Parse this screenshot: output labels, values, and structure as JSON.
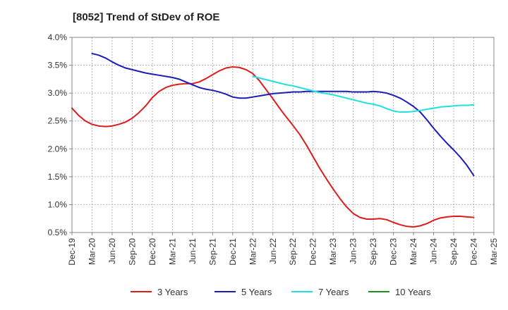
{
  "chart_data": {
    "type": "line",
    "title": "[8052]  Trend of StDev of ROE",
    "x_ticks": [
      "Dec-19",
      "Mar-20",
      "Jun-20",
      "Sep-20",
      "Dec-20",
      "Mar-21",
      "Jun-21",
      "Sep-21",
      "Dec-21",
      "Mar-22",
      "Jun-22",
      "Sep-22",
      "Dec-22",
      "Mar-23",
      "Jun-23",
      "Sep-23",
      "Dec-23",
      "Mar-24",
      "Jun-24",
      "Sep-24",
      "Dec-24",
      "Mar-25"
    ],
    "y_ticks": [
      "0.5%",
      "1.0%",
      "1.5%",
      "2.0%",
      "2.5%",
      "3.0%",
      "3.5%",
      "4.0%"
    ],
    "ylim": [
      0.5,
      4.0
    ],
    "y_unit": "%",
    "grid": true,
    "legend_position": "bottom",
    "series": [
      {
        "name": "3 Years",
        "color": "#dd1c1c",
        "points": [
          [
            "Dec-19",
            2.73
          ],
          [
            "Jan-20",
            2.6
          ],
          [
            "Feb-20",
            2.5
          ],
          [
            "Mar-20",
            2.44
          ],
          [
            "Apr-20",
            2.41
          ],
          [
            "May-20",
            2.4
          ],
          [
            "Jun-20",
            2.41
          ],
          [
            "Jul-20",
            2.44
          ],
          [
            "Aug-20",
            2.48
          ],
          [
            "Sep-20",
            2.55
          ],
          [
            "Oct-20",
            2.65
          ],
          [
            "Nov-20",
            2.77
          ],
          [
            "Dec-20",
            2.92
          ],
          [
            "Jan-21",
            3.03
          ],
          [
            "Feb-21",
            3.1
          ],
          [
            "Mar-21",
            3.14
          ],
          [
            "Apr-21",
            3.16
          ],
          [
            "May-21",
            3.17
          ],
          [
            "Jun-21",
            3.17
          ],
          [
            "Jul-21",
            3.2
          ],
          [
            "Aug-21",
            3.26
          ],
          [
            "Sep-21",
            3.33
          ],
          [
            "Oct-21",
            3.4
          ],
          [
            "Nov-21",
            3.45
          ],
          [
            "Dec-21",
            3.47
          ],
          [
            "Jan-22",
            3.46
          ],
          [
            "Feb-22",
            3.42
          ],
          [
            "Mar-22",
            3.35
          ],
          [
            "Apr-22",
            3.22
          ],
          [
            "May-22",
            3.06
          ],
          [
            "Jun-22",
            2.9
          ],
          [
            "Jul-22",
            2.73
          ],
          [
            "Aug-22",
            2.57
          ],
          [
            "Sep-22",
            2.42
          ],
          [
            "Oct-22",
            2.26
          ],
          [
            "Nov-22",
            2.07
          ],
          [
            "Dec-22",
            1.86
          ],
          [
            "Jan-23",
            1.65
          ],
          [
            "Feb-23",
            1.46
          ],
          [
            "Mar-23",
            1.28
          ],
          [
            "Apr-23",
            1.11
          ],
          [
            "May-23",
            0.96
          ],
          [
            "Jun-23",
            0.84
          ],
          [
            "Jul-23",
            0.77
          ],
          [
            "Aug-23",
            0.74
          ],
          [
            "Sep-23",
            0.74
          ],
          [
            "Oct-23",
            0.75
          ],
          [
            "Nov-23",
            0.73
          ],
          [
            "Dec-23",
            0.68
          ],
          [
            "Jan-24",
            0.64
          ],
          [
            "Feb-24",
            0.61
          ],
          [
            "Mar-24",
            0.6
          ],
          [
            "Apr-24",
            0.62
          ],
          [
            "May-24",
            0.66
          ],
          [
            "Jun-24",
            0.72
          ],
          [
            "Jul-24",
            0.76
          ],
          [
            "Aug-24",
            0.78
          ],
          [
            "Sep-24",
            0.79
          ],
          [
            "Oct-24",
            0.79
          ],
          [
            "Nov-24",
            0.78
          ],
          [
            "Dec-24",
            0.77
          ]
        ]
      },
      {
        "name": "5 Years",
        "color": "#1c1cb8",
        "points": [
          [
            "Mar-20",
            3.71
          ],
          [
            "Apr-20",
            3.68
          ],
          [
            "May-20",
            3.63
          ],
          [
            "Jun-20",
            3.56
          ],
          [
            "Jul-20",
            3.5
          ],
          [
            "Aug-20",
            3.45
          ],
          [
            "Sep-20",
            3.42
          ],
          [
            "Oct-20",
            3.39
          ],
          [
            "Nov-20",
            3.36
          ],
          [
            "Dec-20",
            3.34
          ],
          [
            "Jan-21",
            3.32
          ],
          [
            "Feb-21",
            3.3
          ],
          [
            "Mar-21",
            3.28
          ],
          [
            "Apr-21",
            3.25
          ],
          [
            "May-21",
            3.2
          ],
          [
            "Jun-21",
            3.15
          ],
          [
            "Jul-21",
            3.1
          ],
          [
            "Aug-21",
            3.07
          ],
          [
            "Sep-21",
            3.05
          ],
          [
            "Oct-21",
            3.02
          ],
          [
            "Nov-21",
            2.98
          ],
          [
            "Dec-21",
            2.93
          ],
          [
            "Jan-22",
            2.91
          ],
          [
            "Feb-22",
            2.91
          ],
          [
            "Mar-22",
            2.93
          ],
          [
            "Apr-22",
            2.95
          ],
          [
            "May-22",
            2.97
          ],
          [
            "Jun-22",
            2.99
          ],
          [
            "Jul-22",
            3.0
          ],
          [
            "Aug-22",
            3.01
          ],
          [
            "Sep-22",
            3.02
          ],
          [
            "Oct-22",
            3.02
          ],
          [
            "Nov-22",
            3.03
          ],
          [
            "Dec-22",
            3.03
          ],
          [
            "Jan-23",
            3.03
          ],
          [
            "Feb-23",
            3.03
          ],
          [
            "Mar-23",
            3.03
          ],
          [
            "Apr-23",
            3.03
          ],
          [
            "May-23",
            3.03
          ],
          [
            "Jun-23",
            3.02
          ],
          [
            "Jul-23",
            3.02
          ],
          [
            "Aug-23",
            3.02
          ],
          [
            "Sep-23",
            3.03
          ],
          [
            "Oct-23",
            3.02
          ],
          [
            "Nov-23",
            3.0
          ],
          [
            "Dec-23",
            2.96
          ],
          [
            "Jan-24",
            2.91
          ],
          [
            "Feb-24",
            2.84
          ],
          [
            "Mar-24",
            2.76
          ],
          [
            "Apr-24",
            2.66
          ],
          [
            "May-24",
            2.52
          ],
          [
            "Jun-24",
            2.37
          ],
          [
            "Jul-24",
            2.23
          ],
          [
            "Aug-24",
            2.1
          ],
          [
            "Sep-24",
            1.98
          ],
          [
            "Oct-24",
            1.85
          ],
          [
            "Nov-24",
            1.7
          ],
          [
            "Dec-24",
            1.52
          ]
        ]
      },
      {
        "name": "7 Years",
        "color": "#22e0e0",
        "points": [
          [
            "Mar-22",
            3.3
          ],
          [
            "Apr-22",
            3.27
          ],
          [
            "May-22",
            3.24
          ],
          [
            "Jun-22",
            3.21
          ],
          [
            "Jul-22",
            3.18
          ],
          [
            "Aug-22",
            3.15
          ],
          [
            "Sep-22",
            3.13
          ],
          [
            "Oct-22",
            3.1
          ],
          [
            "Nov-22",
            3.07
          ],
          [
            "Dec-22",
            3.04
          ],
          [
            "Jan-23",
            3.01
          ],
          [
            "Feb-23",
            2.99
          ],
          [
            "Mar-23",
            2.97
          ],
          [
            "Apr-23",
            2.94
          ],
          [
            "May-23",
            2.91
          ],
          [
            "Jun-23",
            2.88
          ],
          [
            "Jul-23",
            2.85
          ],
          [
            "Aug-23",
            2.82
          ],
          [
            "Sep-23",
            2.8
          ],
          [
            "Oct-23",
            2.77
          ],
          [
            "Nov-23",
            2.72
          ],
          [
            "Dec-23",
            2.68
          ],
          [
            "Jan-24",
            2.66
          ],
          [
            "Feb-24",
            2.66
          ],
          [
            "Mar-24",
            2.67
          ],
          [
            "Apr-24",
            2.69
          ],
          [
            "May-24",
            2.71
          ],
          [
            "Jun-24",
            2.73
          ],
          [
            "Jul-24",
            2.75
          ],
          [
            "Aug-24",
            2.76
          ],
          [
            "Sep-24",
            2.77
          ],
          [
            "Oct-24",
            2.78
          ],
          [
            "Nov-24",
            2.78
          ],
          [
            "Dec-24",
            2.79
          ]
        ]
      },
      {
        "name": "10 Years",
        "color": "#1e8c1e",
        "points": []
      }
    ]
  }
}
